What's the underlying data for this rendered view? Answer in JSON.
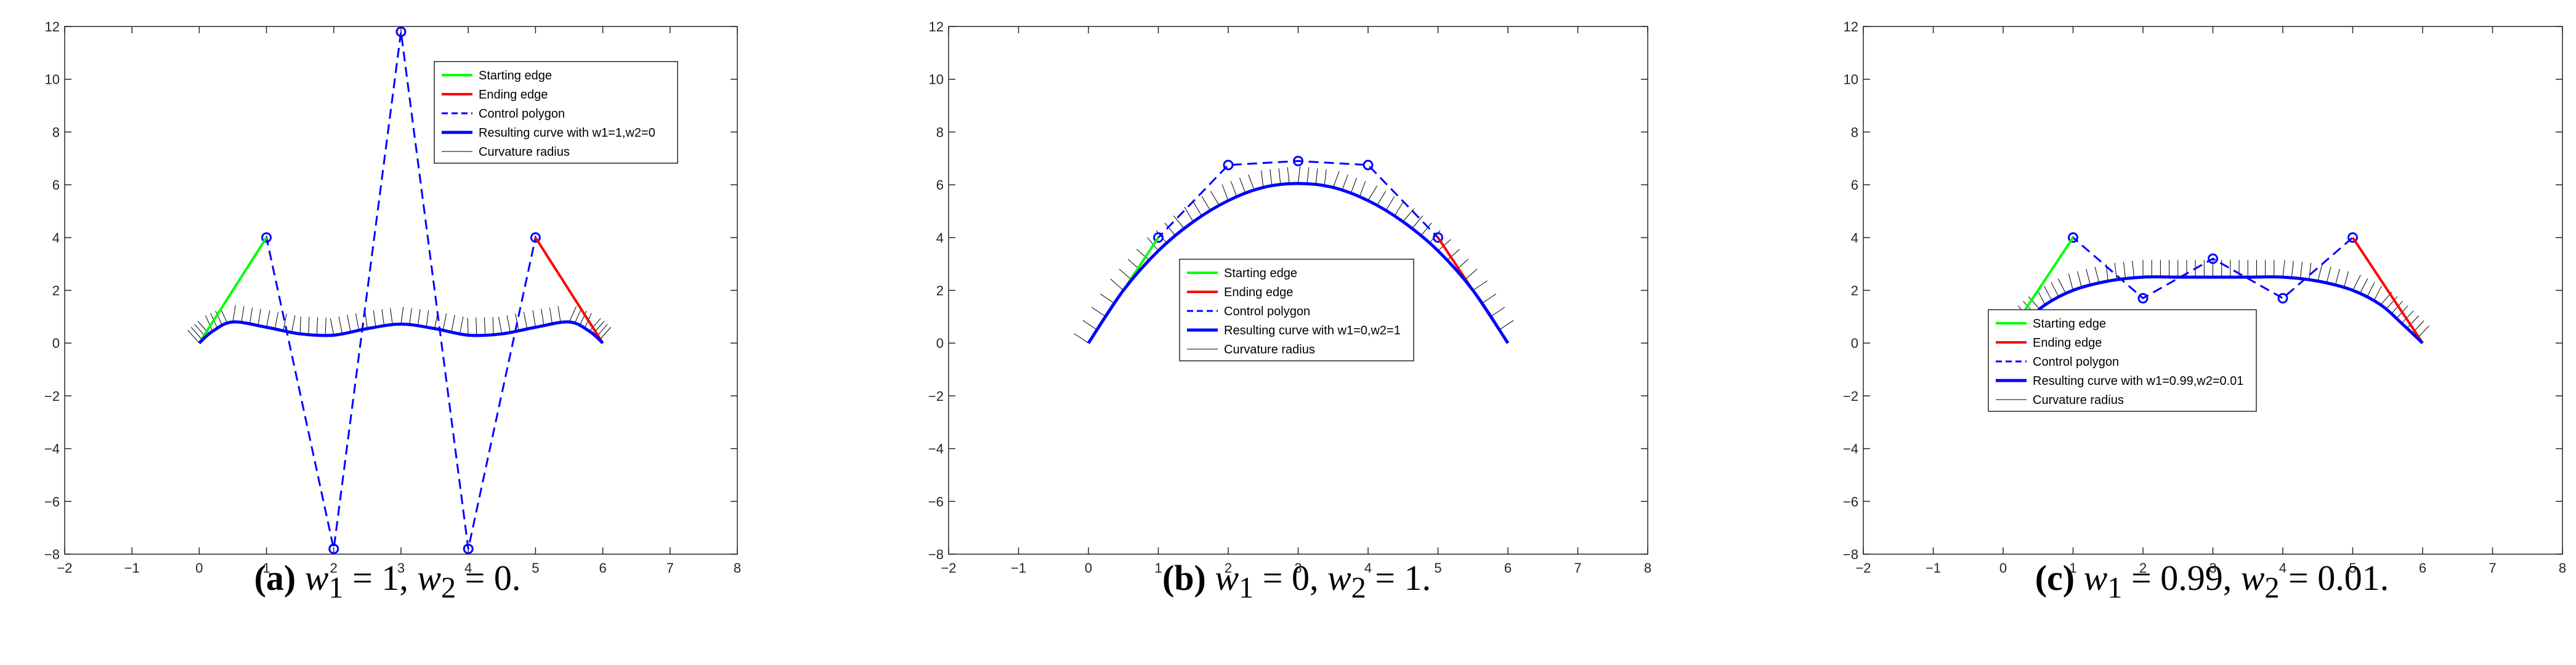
{
  "colors": {
    "start": "#00ff00",
    "end": "#ff0000",
    "polygon": "#0000ff",
    "curve": "#0000ff",
    "radius": "#000000"
  },
  "chart_data": [
    {
      "type": "line",
      "xlim": [
        -2,
        8
      ],
      "ylim": [
        -8,
        12
      ],
      "xticks": [
        -2,
        -1,
        0,
        1,
        2,
        3,
        4,
        5,
        6,
        7,
        8
      ],
      "yticks": [
        -8,
        -6,
        -4,
        -2,
        0,
        2,
        4,
        6,
        8,
        10,
        12
      ],
      "legend_position": "top-right",
      "legend": [
        "Starting edge",
        "Ending edge",
        "Control polygon",
        "Resulting curve with w1=1,w2=0",
        "Curvature radius"
      ],
      "starting_edge": [
        [
          0,
          0
        ],
        [
          1,
          4
        ]
      ],
      "ending_edge": [
        [
          5,
          4
        ],
        [
          6,
          0
        ]
      ],
      "control_polygon": [
        [
          0,
          0
        ],
        [
          1,
          4
        ],
        [
          2,
          -7.8
        ],
        [
          3,
          11.8
        ],
        [
          4,
          -7.8
        ],
        [
          5,
          4
        ],
        [
          6,
          0
        ]
      ],
      "curve": [
        [
          0,
          0
        ],
        [
          0.2,
          0.45
        ],
        [
          0.5,
          0.8
        ],
        [
          1,
          0.6
        ],
        [
          1.5,
          0.35
        ],
        [
          2,
          0.3
        ],
        [
          2.5,
          0.55
        ],
        [
          3,
          0.72
        ],
        [
          3.5,
          0.55
        ],
        [
          4,
          0.3
        ],
        [
          4.5,
          0.35
        ],
        [
          5,
          0.6
        ],
        [
          5.5,
          0.8
        ],
        [
          5.8,
          0.45
        ],
        [
          6,
          0
        ]
      ],
      "caption": {
        "label": "(a)",
        "w1": "1",
        "w2": "0"
      }
    },
    {
      "type": "line",
      "xlim": [
        -2,
        8
      ],
      "ylim": [
        -8,
        12
      ],
      "xticks": [
        -2,
        -1,
        0,
        1,
        2,
        3,
        4,
        5,
        6,
        7,
        8
      ],
      "yticks": [
        -8,
        -6,
        -4,
        -2,
        0,
        2,
        4,
        6,
        8,
        10,
        12
      ],
      "legend_position": "center",
      "legend": [
        "Starting edge",
        "Ending edge",
        "Control polygon",
        "Resulting curve with w1=0,w2=1",
        "Curvature radius"
      ],
      "starting_edge": [
        [
          0,
          0
        ],
        [
          1,
          4
        ]
      ],
      "ending_edge": [
        [
          5,
          4
        ],
        [
          6,
          0
        ]
      ],
      "control_polygon": [
        [
          0,
          0
        ],
        [
          1,
          4
        ],
        [
          2,
          6.75
        ],
        [
          3,
          6.9
        ],
        [
          4,
          6.75
        ],
        [
          5,
          4
        ],
        [
          6,
          0
        ]
      ],
      "curve": [
        [
          0,
          0
        ],
        [
          0.5,
          2.0
        ],
        [
          1,
          3.5
        ],
        [
          1.5,
          4.6
        ],
        [
          2,
          5.4
        ],
        [
          2.5,
          5.9
        ],
        [
          3,
          6.05
        ],
        [
          3.5,
          5.9
        ],
        [
          4,
          5.4
        ],
        [
          4.5,
          4.6
        ],
        [
          5,
          3.5
        ],
        [
          5.5,
          2.0
        ],
        [
          6,
          0
        ]
      ],
      "caption": {
        "label": "(b)",
        "w1": "0",
        "w2": "1"
      }
    },
    {
      "type": "line",
      "xlim": [
        -2,
        8
      ],
      "ylim": [
        -8,
        12
      ],
      "xticks": [
        -2,
        -1,
        0,
        1,
        2,
        3,
        4,
        5,
        6,
        7,
        8
      ],
      "yticks": [
        -8,
        -6,
        -4,
        -2,
        0,
        2,
        4,
        6,
        8,
        10,
        12
      ],
      "legend_position": "center",
      "legend": [
        "Starting edge",
        "Ending edge",
        "Control polygon",
        "Resulting curve with w1=0.99,w2=0.01",
        "Curvature radius"
      ],
      "starting_edge": [
        [
          0,
          0
        ],
        [
          1,
          4
        ]
      ],
      "ending_edge": [
        [
          5,
          4
        ],
        [
          6,
          0
        ]
      ],
      "control_polygon": [
        [
          0,
          0
        ],
        [
          1,
          4
        ],
        [
          2,
          1.7
        ],
        [
          3,
          3.2
        ],
        [
          4,
          1.7
        ],
        [
          5,
          4
        ],
        [
          6,
          0
        ]
      ],
      "curve": [
        [
          0,
          0
        ],
        [
          0.3,
          0.75
        ],
        [
          0.6,
          1.45
        ],
        [
          1,
          2.0
        ],
        [
          1.5,
          2.35
        ],
        [
          2,
          2.5
        ],
        [
          2.5,
          2.5
        ],
        [
          3,
          2.5
        ],
        [
          3.5,
          2.5
        ],
        [
          4,
          2.5
        ],
        [
          4.5,
          2.35
        ],
        [
          5,
          2.0
        ],
        [
          5.4,
          1.45
        ],
        [
          5.7,
          0.75
        ],
        [
          6,
          0
        ]
      ],
      "caption": {
        "label": "(c)",
        "w1": "0.99",
        "w2": "0.01"
      }
    }
  ]
}
